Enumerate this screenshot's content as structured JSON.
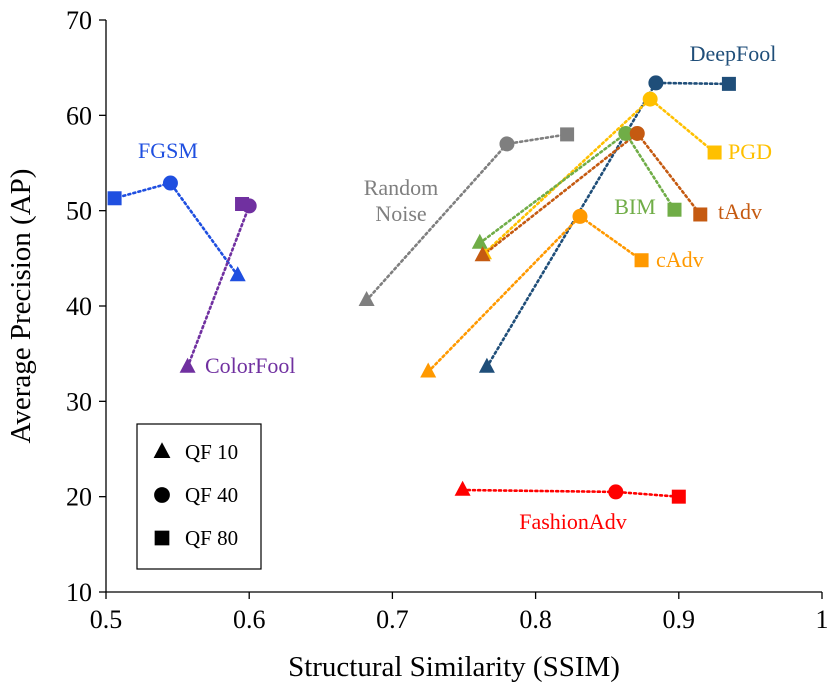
{
  "chart_data": {
    "type": "scatter",
    "xlabel": "Structural Similarity (SSIM)",
    "ylabel": "Average Precision (AP)",
    "xlim": [
      0.5,
      1.0
    ],
    "ylim": [
      10,
      70
    ],
    "xticks": [
      0.5,
      0.6,
      0.7,
      0.8,
      0.9,
      1.0
    ],
    "xtick_labels": [
      "0.5",
      "0.6",
      "0.7",
      "0.8",
      "0.9",
      "1"
    ],
    "yticks": [
      10,
      20,
      30,
      40,
      50,
      60,
      70
    ],
    "ytick_labels": [
      "10",
      "20",
      "30",
      "40",
      "50",
      "60",
      "70"
    ],
    "grid": false,
    "legend": {
      "position": "bottom-left",
      "entries": [
        {
          "marker": "triangle",
          "label": "QF 10"
        },
        {
          "marker": "circle",
          "label": "QF 40"
        },
        {
          "marker": "square",
          "label": "QF 80"
        }
      ]
    },
    "series": [
      {
        "name": "FGSM",
        "color": "#1f4fe0",
        "label_text": "FGSM",
        "points": [
          {
            "qf": 10,
            "x": 0.592,
            "y": 43.2
          },
          {
            "qf": 40,
            "x": 0.545,
            "y": 52.9
          },
          {
            "qf": 80,
            "x": 0.506,
            "y": 51.3
          }
        ]
      },
      {
        "name": "ColorFool",
        "color": "#7030a0",
        "label_text": "ColorFool",
        "points": [
          {
            "qf": 10,
            "x": 0.557,
            "y": 33.6
          },
          {
            "qf": 40,
            "x": 0.6,
            "y": 50.5
          },
          {
            "qf": 80,
            "x": 0.595,
            "y": 50.7
          }
        ]
      },
      {
        "name": "Random Noise",
        "color": "#7f7f7f",
        "label_text": [
          "Random",
          "Noise"
        ],
        "points": [
          {
            "qf": 10,
            "x": 0.682,
            "y": 40.6
          },
          {
            "qf": 40,
            "x": 0.78,
            "y": 57.0
          },
          {
            "qf": 80,
            "x": 0.822,
            "y": 58.0
          }
        ]
      },
      {
        "name": "DeepFool",
        "color": "#1f4e79",
        "label_text": "DeepFool",
        "points": [
          {
            "qf": 10,
            "x": 0.766,
            "y": 33.6
          },
          {
            "qf": 40,
            "x": 0.884,
            "y": 63.4
          },
          {
            "qf": 80,
            "x": 0.935,
            "y": 63.3
          }
        ]
      },
      {
        "name": "PGD",
        "color": "#ffc000",
        "label_text": "PGD",
        "points": [
          {
            "qf": 10,
            "x": 0.764,
            "y": 45.5
          },
          {
            "qf": 40,
            "x": 0.88,
            "y": 61.7
          },
          {
            "qf": 80,
            "x": 0.925,
            "y": 56.1
          }
        ]
      },
      {
        "name": "BIM",
        "color": "#70ad47",
        "label_text": "BIM",
        "points": [
          {
            "qf": 10,
            "x": 0.761,
            "y": 46.6
          },
          {
            "qf": 40,
            "x": 0.863,
            "y": 58.1
          },
          {
            "qf": 80,
            "x": 0.897,
            "y": 50.1
          }
        ]
      },
      {
        "name": "tAdv",
        "color": "#c55a11",
        "label_text": "tAdv",
        "points": [
          {
            "qf": 10,
            "x": 0.763,
            "y": 45.3
          },
          {
            "qf": 40,
            "x": 0.871,
            "y": 58.1
          },
          {
            "qf": 80,
            "x": 0.915,
            "y": 49.6
          }
        ]
      },
      {
        "name": "cAdv",
        "color": "#ff9900",
        "label_text": "cAdv",
        "points": [
          {
            "qf": 10,
            "x": 0.725,
            "y": 33.1
          },
          {
            "qf": 40,
            "x": 0.831,
            "y": 49.4
          },
          {
            "qf": 80,
            "x": 0.874,
            "y": 44.8
          }
        ]
      },
      {
        "name": "FashionAdv",
        "color": "#ff0000",
        "label_text": "FashionAdv",
        "points": [
          {
            "qf": 10,
            "x": 0.749,
            "y": 20.7
          },
          {
            "qf": 40,
            "x": 0.856,
            "y": 20.5
          },
          {
            "qf": 80,
            "x": 0.9,
            "y": 20.0
          }
        ]
      }
    ]
  }
}
